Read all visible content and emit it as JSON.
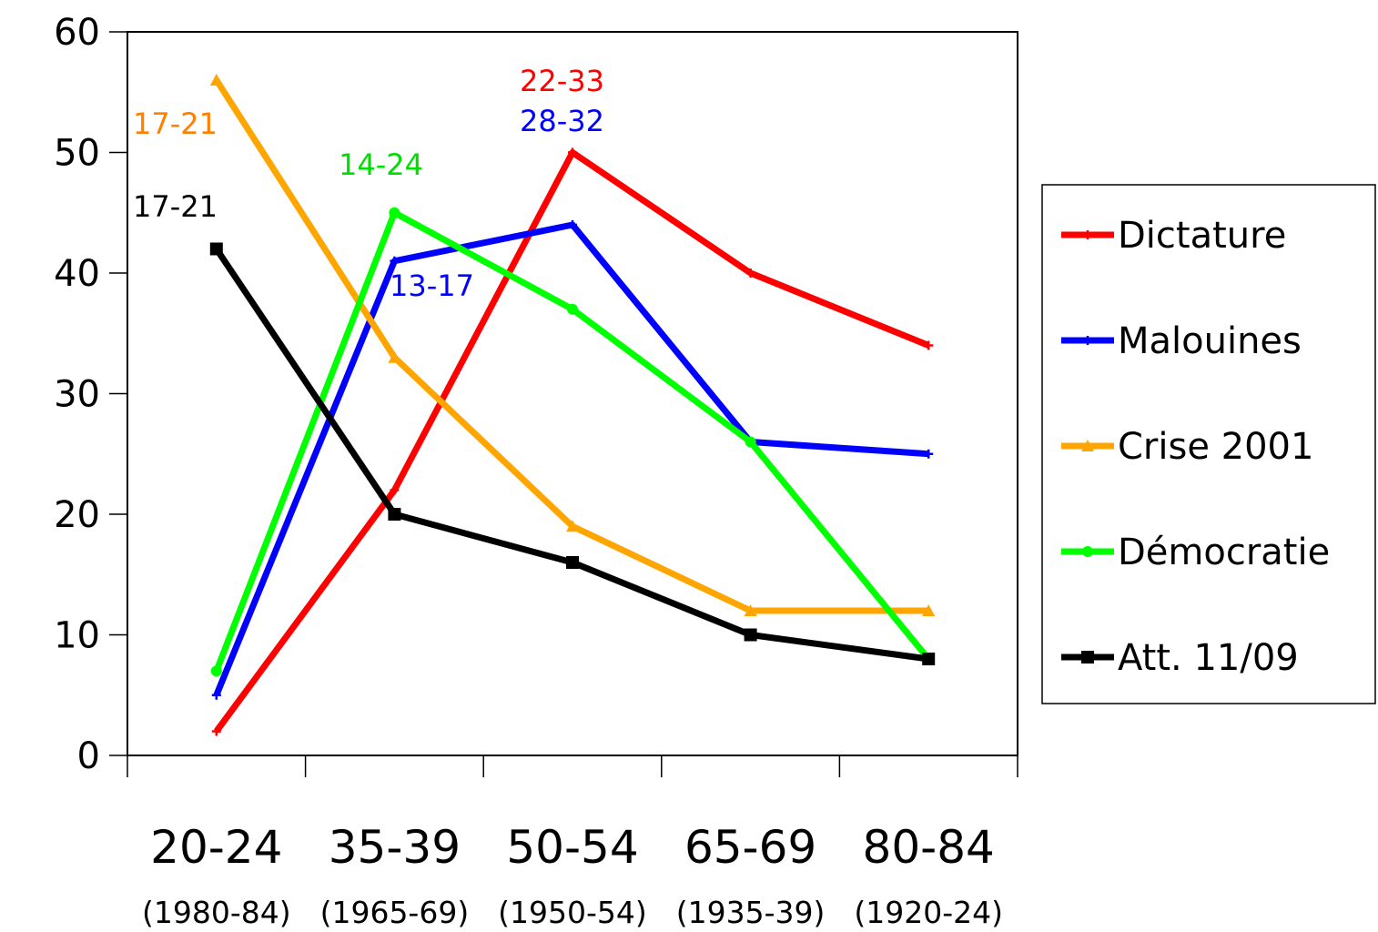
{
  "chart_data": {
    "type": "line",
    "categories": [
      "20-24",
      "35-39",
      "50-54",
      "65-69",
      "80-84"
    ],
    "category_sublabels": [
      "(1980-84)",
      "(1965-69)",
      "(1950-54)",
      "(1935-39)",
      "(1920-24)"
    ],
    "ylim": [
      0,
      60
    ],
    "yticks": [
      0,
      10,
      20,
      30,
      40,
      50,
      60
    ],
    "grid": false,
    "legend_position": "right",
    "series": [
      {
        "name": "Dictature",
        "values": [
          2,
          22,
          50,
          40,
          34
        ],
        "color": "#ff0000",
        "marker": "plus"
      },
      {
        "name": "Malouines",
        "values": [
          5,
          41,
          44,
          26,
          25
        ],
        "color": "#0000ff",
        "marker": "plus"
      },
      {
        "name": "Crise 2001",
        "values": [
          56,
          33,
          19,
          12,
          12
        ],
        "color": "#ffa500",
        "marker": "triangle"
      },
      {
        "name": "Démocratie",
        "values": [
          7,
          45,
          37,
          26,
          8
        ],
        "color": "#00ff00",
        "marker": "circle"
      },
      {
        "name": "Att. 11/09",
        "values": [
          42,
          20,
          16,
          10,
          8
        ],
        "color": "#000000",
        "marker": "square"
      }
    ],
    "annotations": [
      {
        "text": "17-21",
        "color": "#ff7f00"
      },
      {
        "text": "17-21",
        "color": "#000000"
      },
      {
        "text": "14-24",
        "color": "#00dd00"
      },
      {
        "text": "13-17",
        "color": "#0000ff"
      },
      {
        "text": "22-33",
        "color": "#ff0000"
      },
      {
        "text": "28-32",
        "color": "#0000ff"
      }
    ]
  }
}
